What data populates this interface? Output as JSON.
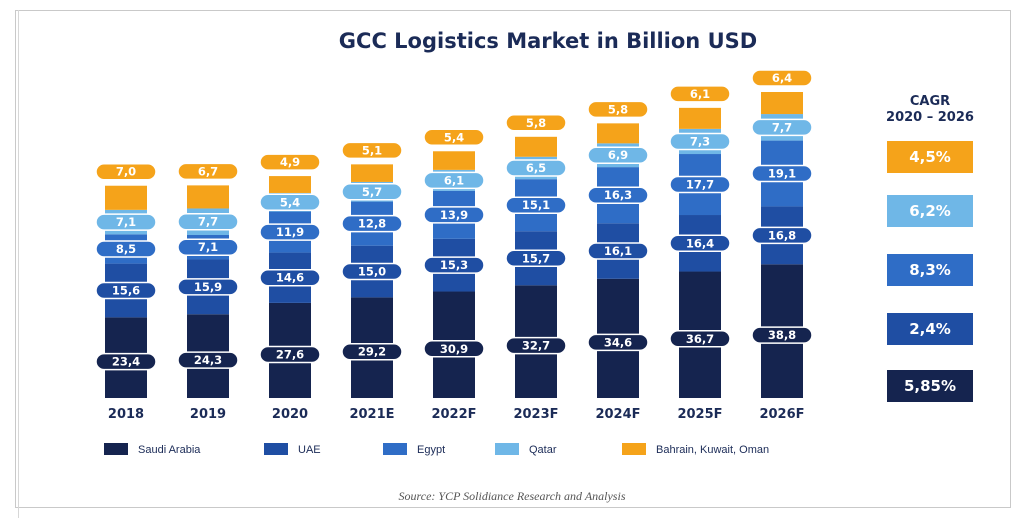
{
  "chart_data": {
    "type": "bar",
    "stacked": true,
    "title": "GCC Logistics Market in Billion USD",
    "categories": [
      "2018",
      "2019",
      "2020",
      "2021E",
      "2022F",
      "2023F",
      "2024F",
      "2025F",
      "2026F"
    ],
    "series": [
      {
        "name": "Saudi Arabia",
        "color": "#15244f",
        "values": [
          23.4,
          24.3,
          27.6,
          29.2,
          30.9,
          32.7,
          34.6,
          36.7,
          38.8
        ],
        "labels": [
          "23,4",
          "24,3",
          "27,6",
          "29,2",
          "30,9",
          "32,7",
          "34,6",
          "36,7",
          "38,8"
        ]
      },
      {
        "name": "UAE",
        "color": "#1f4ea3",
        "values": [
          15.6,
          15.9,
          14.6,
          15.0,
          15.3,
          15.7,
          16.1,
          16.4,
          16.8
        ],
        "labels": [
          "15,6",
          "15,9",
          "14,6",
          "15,0",
          "15,3",
          "15,7",
          "16,1",
          "16,4",
          "16,8"
        ]
      },
      {
        "name": "Egypt",
        "color": "#2f6dc6",
        "values": [
          8.5,
          7.1,
          11.9,
          12.8,
          13.9,
          15.1,
          16.3,
          17.7,
          19.1
        ],
        "labels": [
          "8,5",
          "7,1",
          "11,9",
          "12,8",
          "13,9",
          "15,1",
          "16,3",
          "17,7",
          "19,1"
        ]
      },
      {
        "name": "Qatar",
        "color": "#6fb7e7",
        "values": [
          7.1,
          7.7,
          5.4,
          5.7,
          6.1,
          6.5,
          6.9,
          7.3,
          7.7
        ],
        "labels": [
          "7,1",
          "7,7",
          "5,4",
          "5,7",
          "6,1",
          "6,5",
          "6,9",
          "7,3",
          "7,7"
        ]
      },
      {
        "name": "Bahrain, Kuwait, Oman",
        "color": "#f5a31a",
        "values": [
          7.0,
          6.7,
          4.9,
          5.1,
          5.4,
          5.8,
          5.8,
          6.1,
          6.4
        ],
        "labels": [
          "7,0",
          "6,7",
          "4,9",
          "5,1",
          "5,4",
          "5,8",
          "5,8",
          "6,1",
          "6,4"
        ]
      }
    ],
    "cagr": {
      "title_line1": "CAGR",
      "title_line2": "2020 – 2026",
      "values": [
        "4,5%",
        "6,2%",
        "8,3%",
        "2,4%",
        "5,85%"
      ],
      "colors": [
        "#f5a31a",
        "#6fb7e7",
        "#2f6dc6",
        "#1f4ea3",
        "#15244f"
      ]
    },
    "source": "Source: YCP Solidiance Research and Analysis"
  }
}
